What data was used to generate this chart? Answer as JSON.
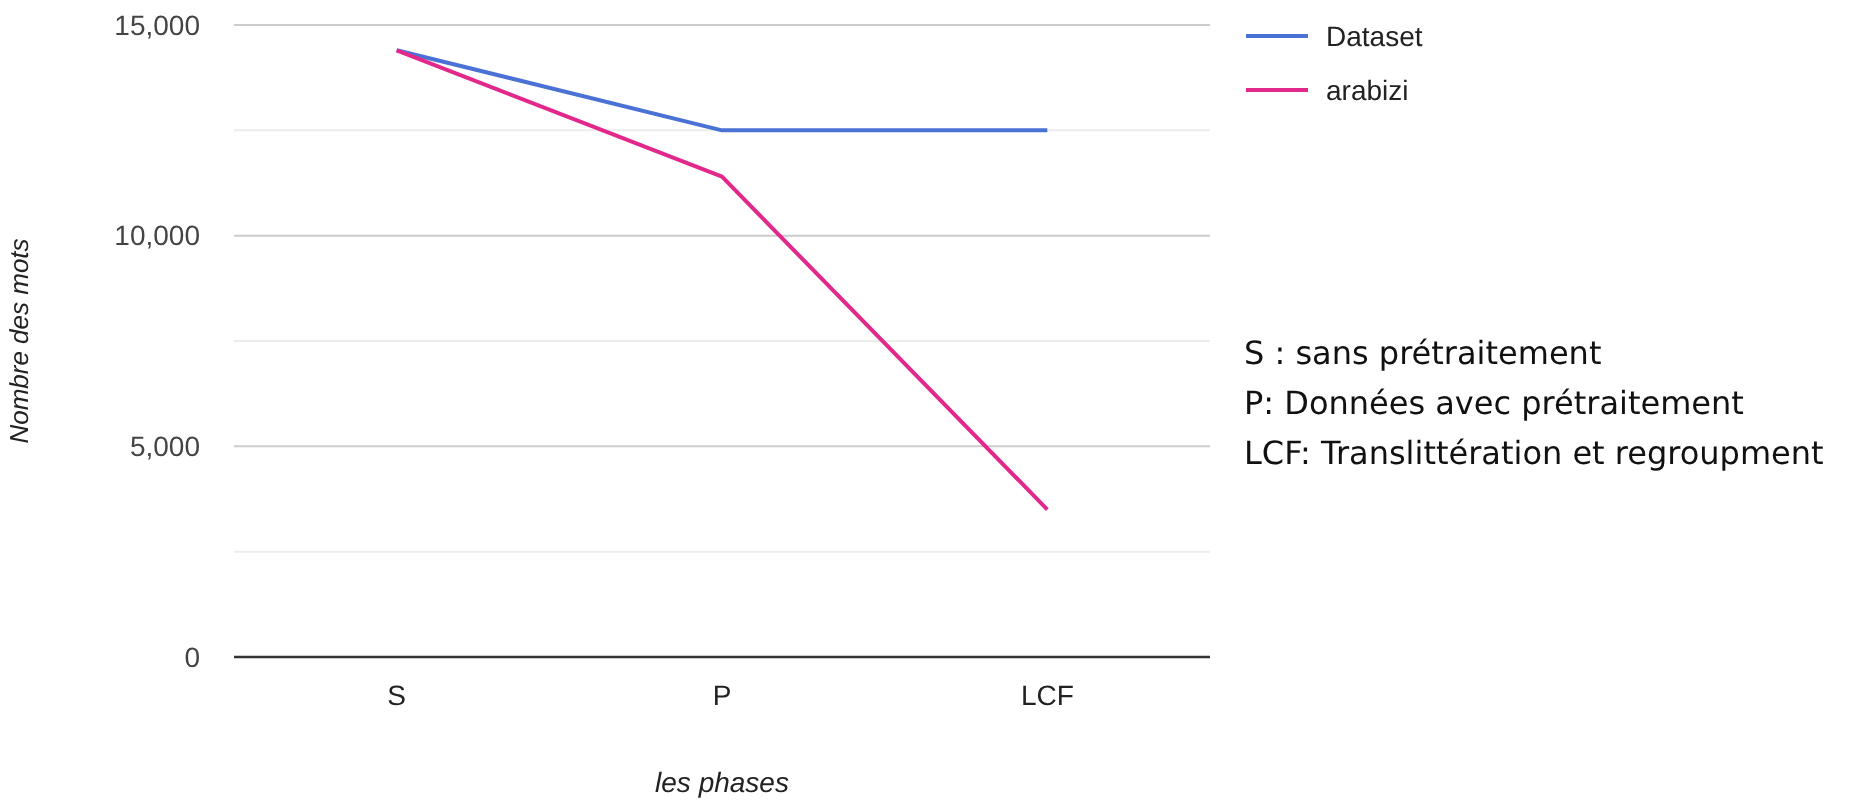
{
  "chart_data": {
    "type": "line",
    "xlabel": "les phases",
    "ylabel": "Nombre des mots",
    "categories": [
      "S",
      "P",
      "LCF"
    ],
    "series": [
      {
        "name": "Dataset",
        "color": "#4a72d4",
        "values": [
          14400,
          12500,
          12500
        ]
      },
      {
        "name": "arabizi",
        "color": "#e2288a",
        "values": [
          14400,
          11400,
          3500
        ]
      }
    ],
    "ylim": [
      0,
      15000
    ],
    "yticks": [
      {
        "value": 0,
        "label": "0"
      },
      {
        "value": 2500,
        "label": null
      },
      {
        "value": 5000,
        "label": "5,000"
      },
      {
        "value": 7500,
        "label": null
      },
      {
        "value": 10000,
        "label": "10,000"
      },
      {
        "value": 12500,
        "label": null
      },
      {
        "value": 15000,
        "label": "15,000"
      }
    ],
    "grid": "y",
    "legend": "right",
    "marker": "none",
    "line_style": "solid",
    "annotations": [
      "S : sans prétraitement",
      "P: Données avec prétraitement",
      "LCF: Translittération et regroupment"
    ]
  }
}
